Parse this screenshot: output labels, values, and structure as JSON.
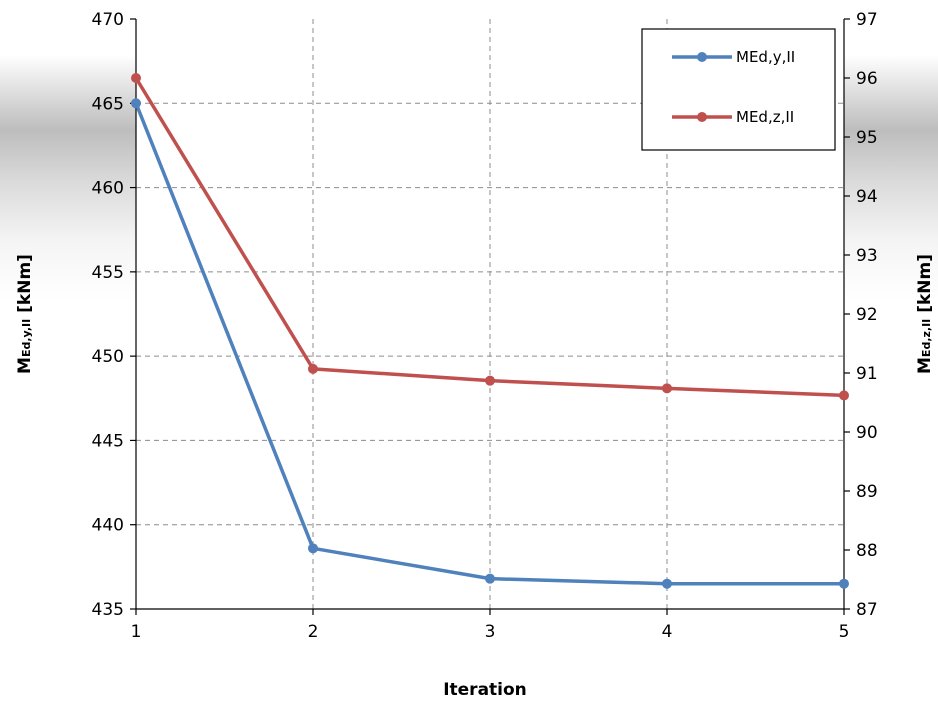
{
  "chart_data": {
    "type": "line",
    "xlabel": "Iteration",
    "ylabel_left": {
      "main": "M",
      "sub": "Ed,y,II",
      "unit": " [kNm]"
    },
    "ylabel_right": {
      "main": "M",
      "sub": "Ed,z,II",
      "unit": " [kNm]"
    },
    "x": [
      1,
      2,
      3,
      4,
      5
    ],
    "x_ticks": [
      "1",
      "2",
      "3",
      "4",
      "5"
    ],
    "y_left_lim": [
      435,
      470
    ],
    "y_left_ticks": [
      "435",
      "440",
      "445",
      "450",
      "455",
      "460",
      "465",
      "470"
    ],
    "y_right_lim": [
      87,
      97
    ],
    "y_right_ticks": [
      "87",
      "88",
      "89",
      "90",
      "91",
      "92",
      "93",
      "94",
      "95",
      "96",
      "97"
    ],
    "grid": true,
    "legend_position": "top-right",
    "series": [
      {
        "name": "MEd,y,II",
        "axis": "left",
        "color": "#4F81BD",
        "values": [
          465.0,
          438.6,
          436.8,
          436.5,
          436.5
        ]
      },
      {
        "name": "MEd,z,II",
        "axis": "right",
        "color": "#C0504D",
        "values": [
          96.0,
          91.07,
          90.87,
          90.74,
          90.62
        ]
      }
    ]
  }
}
